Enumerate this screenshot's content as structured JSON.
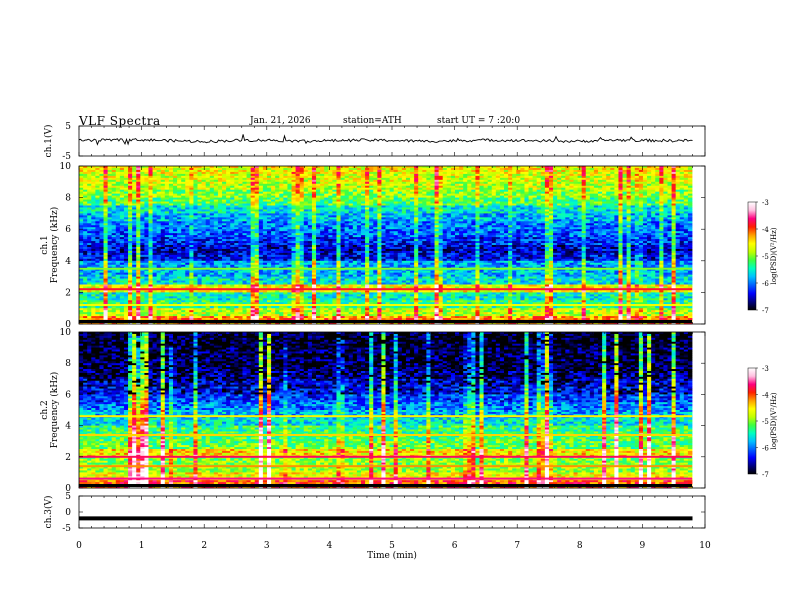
{
  "header": {
    "title": "VLF Spectra",
    "date": "Jan. 21, 2026",
    "station": "station=ATH",
    "start": "start UT =  7 :20:0"
  },
  "colorbar": {
    "label": "log(PSD)(V²/Hz)",
    "ticks": [
      "-3",
      "-4",
      "-5",
      "-6",
      "-7"
    ],
    "colormap": [
      "#000000",
      "#000080",
      "#0000ff",
      "#0060ff",
      "#00c0ff",
      "#00ffc0",
      "#40ff40",
      "#c0ff00",
      "#ffff00",
      "#ffa000",
      "#ff2000",
      "#ff0080",
      "#ffc0e0",
      "#ffffff"
    ]
  },
  "chart_data": [
    {
      "type": "line",
      "name": "ch1-waveform",
      "ylabel": "ch.1(V)",
      "ylim": [
        -5,
        5
      ],
      "yticks": [
        "5",
        "-5"
      ],
      "xlim": [
        0,
        10
      ],
      "x": [
        0,
        0.5,
        1,
        1.5,
        2,
        2.5,
        3,
        3.5,
        4,
        4.5,
        5,
        5.5,
        6,
        6.5,
        7,
        7.5,
        8,
        8.5,
        9,
        9.5,
        9.8
      ],
      "y": [
        0.1,
        0.3,
        0.4,
        0.1,
        -0.2,
        0.2,
        0.3,
        0.0,
        0.1,
        0.3,
        0.2,
        -0.1,
        0.1,
        0.3,
        0.2,
        0.0,
        -0.1,
        0.3,
        0.2,
        0.1,
        0.2
      ],
      "color": "#000000"
    },
    {
      "type": "heatmap",
      "name": "ch1-spectrogram",
      "ylabel": "ch.1\nFrequency (kHz)",
      "ylim": [
        0,
        10
      ],
      "yticks": [
        "0",
        "2",
        "4",
        "6",
        "8",
        "10"
      ],
      "xlim": [
        0,
        10
      ],
      "zlim": [
        -7,
        -3
      ],
      "zlabel": "log(PSD)(V²/Hz)",
      "freq_bands_khz": [
        0,
        0.5,
        1,
        1.5,
        2,
        2.5,
        3,
        3.5,
        4,
        4.5,
        5,
        5.5,
        6,
        6.5,
        7,
        7.5,
        8,
        8.5,
        9,
        9.5
      ],
      "band_level": [
        -4.2,
        -4.8,
        -5.3,
        -5.5,
        -4.6,
        -5.6,
        -5.8,
        -5.9,
        -6.4,
        -6.5,
        -6.3,
        -6.1,
        -6.0,
        -5.8,
        -5.6,
        -5.2,
        -5.0,
        -4.8,
        -4.7,
        -4.6
      ]
    },
    {
      "type": "heatmap",
      "name": "ch2-spectrogram",
      "ylabel": "ch.2\nFrequency (kHz)",
      "ylim": [
        0,
        10
      ],
      "yticks": [
        "0",
        "2",
        "4",
        "6",
        "8",
        "10"
      ],
      "xlim": [
        0,
        10
      ],
      "zlim": [
        -7,
        -3
      ],
      "zlabel": "log(PSD)(V²/Hz)",
      "freq_bands_khz": [
        0,
        0.5,
        1,
        1.5,
        2,
        2.5,
        3,
        3.5,
        4,
        4.5,
        5,
        5.5,
        6,
        6.5,
        7,
        7.5,
        8,
        8.5,
        9,
        9.5
      ],
      "band_level": [
        -4.0,
        -4.6,
        -4.9,
        -5.0,
        -4.5,
        -5.1,
        -5.2,
        -5.3,
        -5.6,
        -5.8,
        -6.0,
        -6.2,
        -6.4,
        -6.5,
        -6.7,
        -6.8,
        -6.8,
        -6.8,
        -6.9,
        -6.9
      ]
    },
    {
      "type": "line",
      "name": "ch3-waveform",
      "ylabel": "ch.3(V)",
      "ylim": [
        -5,
        5
      ],
      "yticks": [
        "5",
        "0",
        "-5"
      ],
      "xlim": [
        0,
        10
      ],
      "xlabel": "Time (min)",
      "xticks": [
        "0",
        "1",
        "2",
        "3",
        "4",
        "5",
        "6",
        "7",
        "8",
        "9",
        "10"
      ],
      "x": [
        0,
        9.8
      ],
      "y": [
        -2,
        -2
      ],
      "color": "#000000"
    }
  ]
}
